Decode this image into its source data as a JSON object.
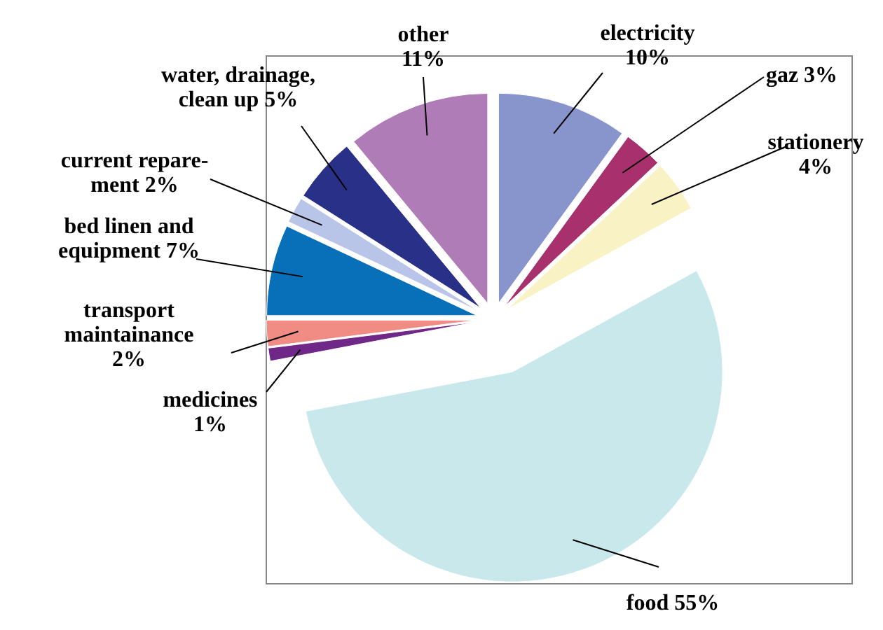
{
  "chart_data": {
    "type": "pie",
    "categories": [
      "electricity",
      "gaz",
      "stationery",
      "food",
      "medicines",
      "transport maintainance",
      "bed linen and equipment",
      "current repare-ment",
      "water, drainage, clean up",
      "other"
    ],
    "values": [
      10,
      3,
      4,
      55,
      1,
      2,
      7,
      2,
      5,
      11
    ],
    "value_labels": [
      "10%",
      "3%",
      "4%",
      "55%",
      "1%",
      "2%",
      "7%",
      "2%",
      "5%",
      "11%"
    ],
    "colors": [
      "#8894cc",
      "#a8306c",
      "#f8f2c4",
      "#c8e8ec",
      "#702888",
      "#f08c84",
      "#0870b8",
      "#b8c4e8",
      "#283088",
      "#b07cb8"
    ]
  }
}
